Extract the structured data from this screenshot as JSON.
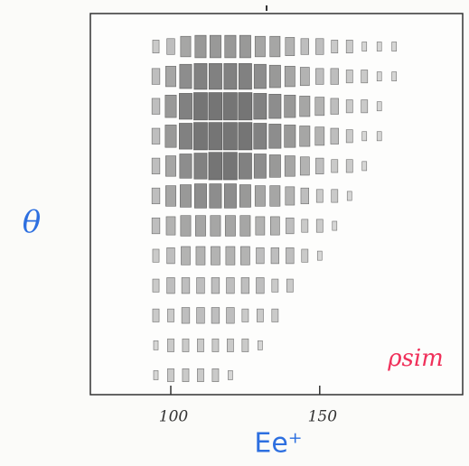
{
  "chart_data": {
    "type": "box2d",
    "ylabel": "θ",
    "xlabel": "Ee⁺",
    "annotation": "ρsim",
    "xlim": [
      73,
      198
    ],
    "xticks": [
      100,
      150
    ],
    "bins": [
      92.5,
      97.5,
      102.5,
      107.5,
      112.5,
      117.5,
      122.5,
      127.5,
      132.5,
      137.5,
      142.5,
      147.5,
      152.5,
      157.5,
      162.5,
      167.5,
      172.5,
      177.5
    ],
    "color": "#222222",
    "xlabel_color": "#2d6fe0",
    "annotation_color": "#f0305a",
    "z": [
      [
        2,
        3,
        5,
        6,
        6,
        6,
        6,
        5,
        5,
        4,
        3,
        3,
        2,
        2,
        1,
        1,
        1
      ],
      [
        3,
        5,
        7,
        8,
        8,
        8,
        8,
        7,
        6,
        5,
        4,
        3,
        3,
        2,
        2,
        1,
        1
      ],
      [
        3,
        6,
        8,
        9,
        9,
        9,
        9,
        8,
        7,
        6,
        5,
        4,
        3,
        2,
        2,
        1,
        0
      ],
      [
        3,
        6,
        8,
        9,
        9,
        9,
        9,
        8,
        7,
        6,
        5,
        4,
        3,
        2,
        1,
        1,
        0
      ],
      [
        3,
        5,
        7,
        8,
        9,
        9,
        8,
        7,
        6,
        5,
        4,
        3,
        2,
        2,
        1,
        0,
        0
      ],
      [
        3,
        5,
        6,
        7,
        7,
        7,
        6,
        5,
        5,
        4,
        3,
        2,
        2,
        1,
        0,
        0,
        0
      ],
      [
        3,
        4,
        5,
        5,
        5,
        5,
        5,
        4,
        4,
        3,
        2,
        2,
        1,
        0,
        0,
        0,
        0
      ],
      [
        2,
        3,
        4,
        4,
        4,
        4,
        4,
        3,
        3,
        3,
        2,
        1,
        0,
        0,
        0,
        0,
        0
      ],
      [
        2,
        3,
        3,
        3,
        3,
        3,
        3,
        3,
        2,
        2,
        0,
        0,
        0,
        0,
        0,
        0,
        0
      ],
      [
        2,
        2,
        3,
        3,
        3,
        3,
        2,
        2,
        2,
        0,
        0,
        0,
        0,
        0,
        0,
        0,
        0
      ],
      [
        1,
        2,
        2,
        2,
        2,
        2,
        2,
        1,
        0,
        0,
        0,
        0,
        0,
        0,
        0,
        0,
        0
      ],
      [
        1,
        2,
        2,
        2,
        2,
        1,
        0,
        0,
        0,
        0,
        0,
        0,
        0,
        0,
        0,
        0,
        0
      ]
    ]
  }
}
